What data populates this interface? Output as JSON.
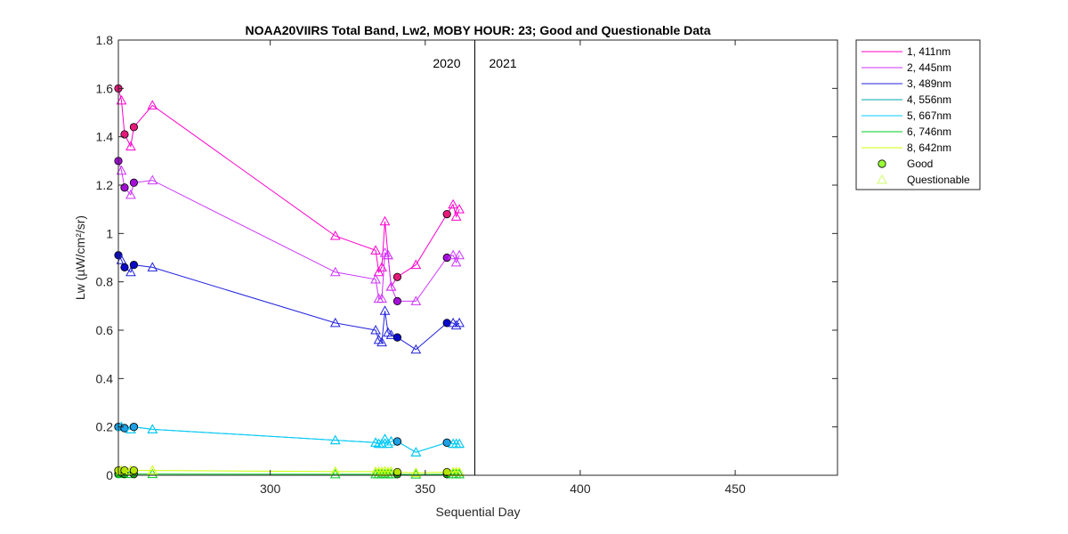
{
  "chart_data": {
    "type": "line",
    "title": "NOAA20VIIRS Total Band,  Lw2, MOBY HOUR: 23;  Good and Questionable Data",
    "xlabel": "Sequential Day",
    "ylabel": "Lw (µW/cm²/sr)",
    "xlim": [
      251,
      483
    ],
    "ylim": [
      0,
      1.8
    ],
    "xticks": [
      300,
      350,
      400,
      450
    ],
    "yticks": [
      0,
      0.2,
      0.4,
      0.6,
      0.8,
      1,
      1.2,
      1.4,
      1.6,
      1.8
    ],
    "ytick_labels": [
      "0",
      "0.2",
      "0.4",
      "0.6",
      "0.8",
      "1",
      "1.2",
      "1.4",
      "1.6",
      "1.8"
    ],
    "year_divider_x": 366,
    "year_labels": [
      "2020",
      "2021"
    ],
    "grid": false,
    "legend_position": "outside-top-right",
    "x": [
      251,
      252,
      253,
      255,
      256,
      262,
      321,
      334,
      335,
      336,
      337,
      338,
      339,
      341,
      347,
      357,
      359,
      360,
      361
    ],
    "flags": [
      "G",
      "Q",
      "G",
      "Q",
      "G",
      "Q",
      "Q",
      "Q",
      "Q",
      "Q",
      "Q",
      "Q",
      "Q",
      "G",
      "Q",
      "G",
      "Q",
      "Q",
      "Q"
    ],
    "series": [
      {
        "name": "1, 411nm",
        "color": "#ff00cc",
        "marker_fill": "#e6197a",
        "values": [
          1.6,
          1.55,
          1.41,
          1.36,
          1.44,
          1.53,
          0.99,
          0.93,
          0.84,
          0.86,
          1.05,
          0.91,
          0.78,
          0.82,
          0.87,
          1.08,
          1.12,
          1.07,
          1.1
        ]
      },
      {
        "name": "2, 445nm",
        "color": "#cc33ff",
        "marker_fill": "#a30fd6",
        "values": [
          1.3,
          1.26,
          1.19,
          1.16,
          1.21,
          1.22,
          0.84,
          0.81,
          0.73,
          0.73,
          0.92,
          0.91,
          0.78,
          0.72,
          0.72,
          0.9,
          0.91,
          0.88,
          0.91
        ]
      },
      {
        "name": "3, 489nm",
        "color": "#2222dd",
        "marker_fill": "#0a0ac8",
        "values": [
          0.91,
          0.89,
          0.86,
          0.84,
          0.87,
          0.86,
          0.63,
          0.6,
          0.56,
          0.55,
          0.68,
          0.59,
          0.58,
          0.57,
          0.52,
          0.63,
          0.63,
          0.62,
          0.63
        ]
      },
      {
        "name": "4, 556nm",
        "color": "#00aaaa",
        "marker_fill": "#00a0a0",
        "values": [
          0.2,
          0.2,
          0.195,
          0.19,
          0.2,
          0.19,
          0.145,
          0.135,
          0.13,
          0.13,
          0.15,
          0.13,
          0.14,
          0.14,
          0.095,
          0.135,
          0.13,
          0.13,
          0.13
        ]
      },
      {
        "name": "5, 667nm",
        "color": "#00ccff",
        "marker_fill": "#1ea0e6",
        "values": [
          0.2,
          0.2,
          0.195,
          0.19,
          0.2,
          0.19,
          0.145,
          0.135,
          0.13,
          0.13,
          0.15,
          0.13,
          0.14,
          0.14,
          0.095,
          0.135,
          0.13,
          0.13,
          0.13
        ]
      },
      {
        "name": "6, 746nm",
        "color": "#00cc22",
        "marker_fill": "#19b419",
        "values": [
          0.005,
          0.005,
          0.005,
          0.005,
          0.005,
          0.005,
          0.004,
          0.004,
          0.004,
          0.004,
          0.004,
          0.004,
          0.004,
          0.004,
          0.003,
          0.004,
          0.004,
          0.004,
          0.004
        ]
      },
      {
        "name": "8, 642nm",
        "color": "#ccff00",
        "marker_fill": "#b4e600",
        "values": [
          0.02,
          0.02,
          0.02,
          0.02,
          0.02,
          0.02,
          0.015,
          0.015,
          0.014,
          0.014,
          0.016,
          0.014,
          0.015,
          0.013,
          0.01,
          0.013,
          0.013,
          0.013,
          0.013
        ]
      }
    ],
    "legend_extra": [
      {
        "label": "Good",
        "marker": "circle",
        "fill": "#99ff33"
      },
      {
        "label": "Questionable",
        "marker": "triangle",
        "stroke": "#ccff66"
      }
    ]
  }
}
